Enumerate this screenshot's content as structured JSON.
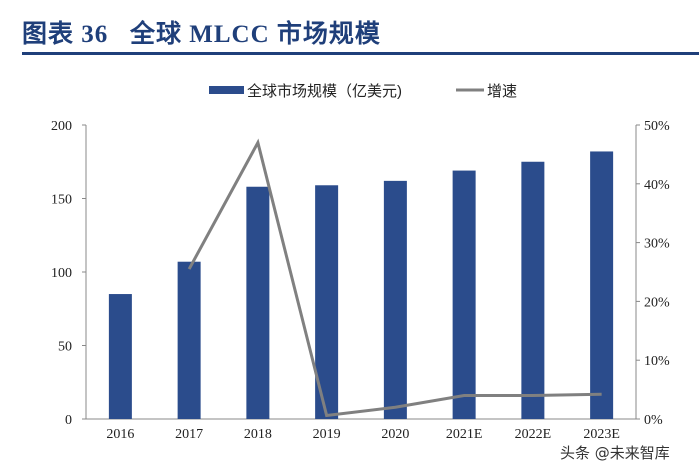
{
  "title": "图表 36   全球 MLCC 市场规模",
  "watermark": "头条 @未来智库",
  "chart_data": {
    "type": "bar+line",
    "categories": [
      "2016",
      "2017",
      "2018",
      "2019",
      "2020",
      "2021E",
      "2022E",
      "2023E"
    ],
    "series": [
      {
        "name": "全球市场规模（亿美元)",
        "type": "bar",
        "axis": "left",
        "color": "#2b4c8c",
        "values": [
          85,
          107,
          158,
          159,
          162,
          169,
          175,
          182
        ]
      },
      {
        "name": "增速",
        "type": "line",
        "axis": "right",
        "color": "#808080",
        "values": [
          null,
          25.5,
          47,
          0.6,
          2,
          4,
          4,
          4.2
        ]
      }
    ],
    "y_left": {
      "min": 0,
      "max": 200,
      "ticks": [
        "0",
        "50",
        "100",
        "150",
        "200"
      ]
    },
    "y_right": {
      "min": 0,
      "max": 50,
      "ticks": [
        "0%",
        "10%",
        "20%",
        "30%",
        "40%",
        "50%"
      ]
    },
    "legend": "top-center",
    "grid": false
  }
}
